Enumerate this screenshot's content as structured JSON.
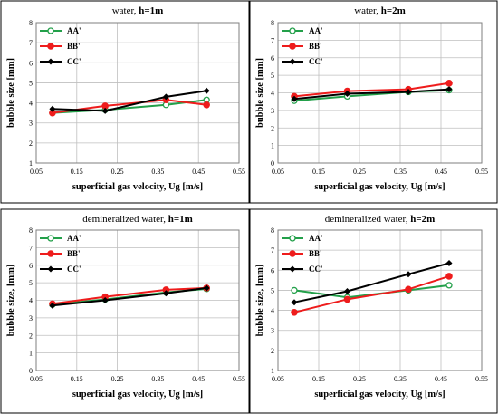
{
  "chart_data": [
    {
      "type": "line",
      "title_prefix": "water, ",
      "title_suffix": "h=1m",
      "xlabel": "superficial gas velocity, Ug [m/s]",
      "ylabel": "bubble size [mm]",
      "xlim": [
        0.05,
        0.55
      ],
      "ylim": [
        1,
        8
      ],
      "xticks": [
        "0.05",
        "0.15",
        "0.25",
        "0.35",
        "0.45",
        "0.55"
      ],
      "yticks": [
        "1",
        "2",
        "3",
        "4",
        "5",
        "6",
        "7",
        "8"
      ],
      "grid": true,
      "legend_position": "top-left",
      "x": [
        0.09,
        0.22,
        0.37,
        0.47
      ],
      "series": [
        {
          "name": "AA'",
          "color": "#23a04a",
          "marker": "open-circle",
          "values": [
            3.5,
            3.65,
            3.9,
            4.15
          ]
        },
        {
          "name": "BB'",
          "color": "#ee1c1c",
          "marker": "filled-circle",
          "values": [
            3.5,
            3.85,
            4.15,
            3.9
          ]
        },
        {
          "name": "CC'",
          "color": "#000000",
          "marker": "filled-diamond",
          "values": [
            3.7,
            3.6,
            4.3,
            4.6
          ]
        }
      ]
    },
    {
      "type": "line",
      "title_prefix": "water, ",
      "title_suffix": "h=2m",
      "xlabel": "superficial gas velocity, Ug [m/s]",
      "ylabel": "bubble size [mm]",
      "xlim": [
        0.05,
        0.55
      ],
      "ylim": [
        0,
        8
      ],
      "xticks": [
        "0.05",
        "0.15",
        "0.25",
        "0.35",
        "0.45",
        "0.55"
      ],
      "yticks": [
        "0",
        "1",
        "2",
        "3",
        "4",
        "5",
        "6",
        "7",
        "8"
      ],
      "grid": true,
      "legend_position": "top-left",
      "x": [
        0.09,
        0.22,
        0.37,
        0.47
      ],
      "series": [
        {
          "name": "AA'",
          "color": "#23a04a",
          "marker": "open-circle",
          "values": [
            3.55,
            3.8,
            4.05,
            4.15
          ]
        },
        {
          "name": "BB'",
          "color": "#ee1c1c",
          "marker": "filled-circle",
          "values": [
            3.8,
            4.1,
            4.2,
            4.55
          ]
        },
        {
          "name": "CC'",
          "color": "#000000",
          "marker": "filled-diamond",
          "values": [
            3.65,
            3.95,
            4.05,
            4.2
          ]
        }
      ]
    },
    {
      "type": "line",
      "title_prefix": "demineralized water, ",
      "title_suffix": "h=1m",
      "xlabel": "superficial gas velocity, Ug [m/s]",
      "ylabel": "bubble size, [mm]",
      "xlim": [
        0.05,
        0.55
      ],
      "ylim": [
        0,
        8
      ],
      "xticks": [
        "0.05",
        "0.15",
        "0.25",
        "0.35",
        "0.45",
        "0.55"
      ],
      "yticks": [
        "0",
        "1",
        "2",
        "3",
        "4",
        "5",
        "6",
        "7",
        "8"
      ],
      "grid": true,
      "legend_position": "top-left",
      "x": [
        0.09,
        0.22,
        0.37,
        0.47
      ],
      "series": [
        {
          "name": "AA'",
          "color": "#23a04a",
          "marker": "open-circle",
          "values": [
            3.75,
            4.05,
            4.45,
            4.65
          ]
        },
        {
          "name": "BB'",
          "color": "#ee1c1c",
          "marker": "filled-circle",
          "values": [
            3.8,
            4.2,
            4.6,
            4.7
          ]
        },
        {
          "name": "CC'",
          "color": "#000000",
          "marker": "filled-diamond",
          "values": [
            3.7,
            4.0,
            4.4,
            4.7
          ]
        }
      ]
    },
    {
      "type": "line",
      "title_prefix": "demineralized water, ",
      "title_suffix": "h=2m",
      "xlabel": "superficial gas velocity, Ug [m/s]",
      "ylabel": "bubble size, [mm]",
      "xlim": [
        0.05,
        0.55
      ],
      "ylim": [
        1,
        8
      ],
      "xticks": [
        "0.05",
        "0.15",
        "0.25",
        "0.35",
        "0.45",
        "0.55"
      ],
      "yticks": [
        "1",
        "2",
        "3",
        "4",
        "5",
        "6",
        "7",
        "8"
      ],
      "grid": true,
      "legend_position": "top-left",
      "x": [
        0.09,
        0.22,
        0.37,
        0.47
      ],
      "series": [
        {
          "name": "AA'",
          "color": "#23a04a",
          "marker": "open-circle",
          "values": [
            5.0,
            4.65,
            5.0,
            5.25
          ]
        },
        {
          "name": "BB'",
          "color": "#ee1c1c",
          "marker": "filled-circle",
          "values": [
            3.9,
            4.55,
            5.05,
            5.7
          ]
        },
        {
          "name": "CC'",
          "color": "#000000",
          "marker": "filled-diamond",
          "values": [
            4.4,
            4.95,
            5.8,
            6.35
          ]
        }
      ]
    }
  ]
}
